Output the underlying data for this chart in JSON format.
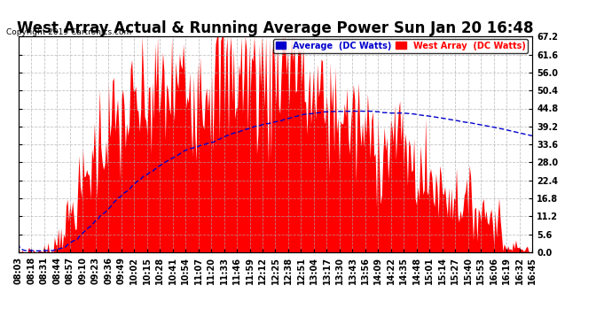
{
  "title": "West Array Actual & Running Average Power Sun Jan 20 16:48",
  "copyright": "Copyright 2019 Cartronics.com",
  "legend_avg": "Average  (DC Watts)",
  "legend_west": "West Array  (DC Watts)",
  "ylabel_right_values": [
    0.0,
    5.6,
    11.2,
    16.8,
    22.4,
    28.0,
    33.6,
    39.2,
    44.8,
    50.4,
    56.0,
    61.6,
    67.2
  ],
  "ymax": 67.2,
  "ymin": 0.0,
  "background_color": "#ffffff",
  "plot_bg_color": "#ffffff",
  "grid_color": "#aaaaaa",
  "fill_color": "#ff0000",
  "avg_line_color": "#0000cc",
  "title_fontsize": 12,
  "tick_fontsize": 7,
  "x_labels": [
    "08:03",
    "08:18",
    "08:31",
    "08:44",
    "08:57",
    "09:10",
    "09:23",
    "09:36",
    "09:49",
    "10:02",
    "10:15",
    "10:28",
    "10:41",
    "10:54",
    "11:07",
    "11:20",
    "11:33",
    "11:46",
    "11:59",
    "12:12",
    "12:25",
    "12:38",
    "12:51",
    "13:04",
    "13:17",
    "13:30",
    "13:43",
    "13:56",
    "14:09",
    "14:22",
    "14:35",
    "14:48",
    "15:01",
    "15:14",
    "15:27",
    "15:40",
    "15:53",
    "16:06",
    "16:19",
    "16:32",
    "16:45"
  ]
}
